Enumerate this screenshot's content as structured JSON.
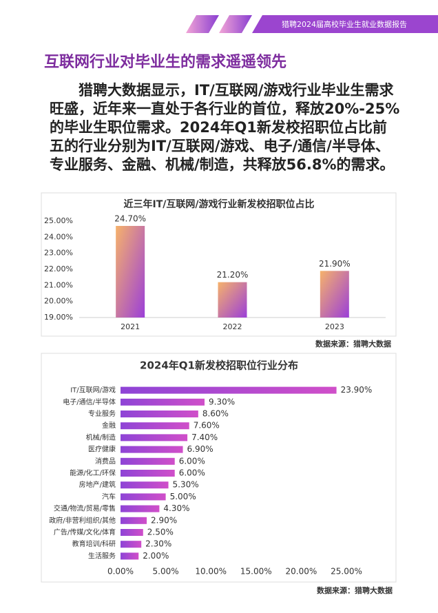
{
  "header": {
    "title": "猎聘2024届高校毕业生就业数据报告"
  },
  "heading": "互联网行业对毕业生的需求遥遥领先",
  "paragraph": "猎聘大数据显示，IT/互联网/游戏行业毕业生需求旺盛，近年来一直处于各行业的首位，释放20%-25%的毕业生职位需求。2024年Q1新发校招职位占比前五的行业分别为IT/互联网/游戏、电子/通信/半导体、专业服务、金融、机械/制造，共释放56.8%的需求。",
  "chart_data": [
    {
      "type": "bar",
      "title": "近三年IT/互联网/游戏行业新发校招职位占比",
      "categories": [
        "2021",
        "2022",
        "2023"
      ],
      "values": [
        24.7,
        21.2,
        21.9
      ],
      "value_labels": [
        "24.70%",
        "21.20%",
        "21.90%"
      ],
      "colors": [
        "#f6b26b",
        "#9b3fd8"
      ],
      "ylim": [
        19,
        25
      ],
      "yticks": [
        {
          "value": 19,
          "label": "19.00%"
        },
        {
          "value": 20,
          "label": "20.00%"
        },
        {
          "value": 21,
          "label": "21.00%"
        },
        {
          "value": 22,
          "label": "22.00%"
        },
        {
          "value": 23,
          "label": "23.00%"
        },
        {
          "value": 24,
          "label": "24.00%"
        },
        {
          "value": 25,
          "label": "25.00%"
        }
      ],
      "grid": false,
      "source": "数据来源：猎聘大数据"
    },
    {
      "type": "barh",
      "title": "2024年Q1新发校招职位行业分布",
      "categories": [
        "IT/互联网/游戏",
        "电子/通信/半导体",
        "专业服务",
        "金融",
        "机械/制造",
        "医疗健康",
        "消费品",
        "能源/化工/环保",
        "房地产/建筑",
        "汽车",
        "交通/物流/贸易/零售",
        "政府/非营利组织/其他",
        "广告/传媒/文化/体育",
        "教育培训/科研",
        "生活服务"
      ],
      "values": [
        23.9,
        9.3,
        8.6,
        7.6,
        7.4,
        6.9,
        6.0,
        6.0,
        5.3,
        5.0,
        4.3,
        2.9,
        2.5,
        2.3,
        2.0
      ],
      "value_labels": [
        "23.90%",
        "9.30%",
        "8.60%",
        "7.60%",
        "7.40%",
        "6.90%",
        "6.00%",
        "6.00%",
        "5.30%",
        "5.00%",
        "4.30%",
        "2.90%",
        "2.50%",
        "2.30%",
        "2.00%"
      ],
      "colors": [
        "#8e44d6",
        "#d04fc9"
      ],
      "xlim": [
        0,
        25
      ],
      "xticks": [
        {
          "value": 0,
          "label": "0.00%"
        },
        {
          "value": 5,
          "label": "5.00%"
        },
        {
          "value": 10,
          "label": "10.00%"
        },
        {
          "value": 15,
          "label": "15.00%"
        },
        {
          "value": 20,
          "label": "20.00%"
        },
        {
          "value": 25,
          "label": "25.00%"
        }
      ],
      "grid": false,
      "source": "数据来源：猎聘大数据"
    }
  ]
}
